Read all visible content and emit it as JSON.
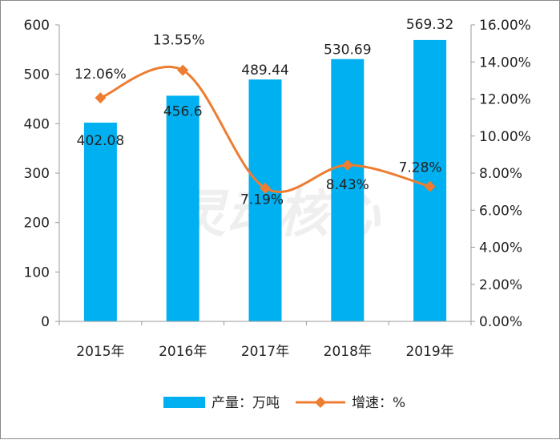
{
  "chart_data": {
    "type": "bar+line",
    "title": "",
    "categories": [
      "2015年",
      "2016年",
      "2017年",
      "2018年",
      "2019年"
    ],
    "series": [
      {
        "name": "产量：万吨",
        "type": "bar",
        "axis": "left",
        "values": [
          402.08,
          456.6,
          489.44,
          530.69,
          569.32
        ],
        "labels": [
          "402.08",
          "456.6",
          "489.44",
          "530.69",
          "569.32"
        ],
        "color": "#00b0f0"
      },
      {
        "name": "增速：%",
        "type": "line",
        "axis": "right",
        "values": [
          12.06,
          13.55,
          7.19,
          8.43,
          7.28
        ],
        "labels": [
          "12.06%",
          "13.55%",
          "7.19%",
          "8.43%",
          "7.28%"
        ],
        "color": "#ed7d31"
      }
    ],
    "y_left": {
      "min": 0,
      "max": 600,
      "ticks": [
        "0",
        "100",
        "200",
        "300",
        "400",
        "500",
        "600"
      ]
    },
    "y_right": {
      "min": 0,
      "max": 16,
      "ticks": [
        "0.00%",
        "2.00%",
        "4.00%",
        "6.00%",
        "8.00%",
        "10.00%",
        "12.00%",
        "14.00%",
        "16.00%"
      ]
    },
    "grid": false,
    "legend_position": "bottom",
    "watermark": "灵动核心"
  }
}
